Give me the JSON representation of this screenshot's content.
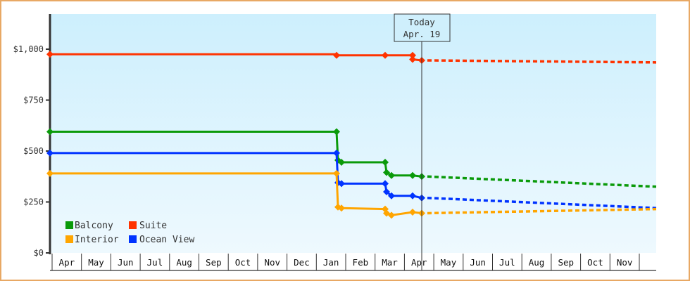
{
  "chart_data": {
    "type": "line",
    "title": "",
    "xlabel": "",
    "ylabel": "",
    "ylim": [
      0,
      1150
    ],
    "y_ticks": [
      {
        "value": 0,
        "label": "$0"
      },
      {
        "value": 250,
        "label": "$250"
      },
      {
        "value": 500,
        "label": "$500"
      },
      {
        "value": 750,
        "label": "$750"
      },
      {
        "value": 1000,
        "label": "$1,000"
      }
    ],
    "x_months": [
      "Apr",
      "May",
      "Jun",
      "Jul",
      "Aug",
      "Sep",
      "Oct",
      "Nov",
      "Dec",
      "Jan",
      "Feb",
      "Mar",
      "Apr",
      "May",
      "Jun",
      "Jul",
      "Aug",
      "Sep",
      "Oct",
      "Nov"
    ],
    "today_marker": {
      "line1": "Today",
      "line2": "Apr. 19"
    },
    "legend": [
      {
        "name": "Balcony",
        "color": "#0a9a0a"
      },
      {
        "name": "Suite",
        "color": "#ff3300"
      },
      {
        "name": "Interior",
        "color": "#ffa500"
      },
      {
        "name": "Ocean View",
        "color": "#0033ff"
      }
    ],
    "series": [
      {
        "name": "Suite",
        "color": "#ff3300",
        "history": [
          [
            "Apr (yr1)",
            975
          ],
          [
            "Jan",
            970
          ],
          [
            "Mar",
            970
          ],
          [
            "Apr",
            950
          ],
          [
            "Apr 19",
            945
          ]
        ],
        "forecast_end": [
          "Nov",
          935
        ]
      },
      {
        "name": "Balcony",
        "color": "#0a9a0a",
        "history": [
          [
            "Apr (yr1)",
            595
          ],
          [
            "Jan",
            455
          ],
          [
            "Jan",
            445
          ],
          [
            "Mar",
            445
          ],
          [
            "Mar",
            395
          ],
          [
            "Mar",
            380
          ],
          [
            "Apr",
            380
          ],
          [
            "Apr 19",
            375
          ]
        ],
        "forecast_end": [
          "Nov",
          325
        ]
      },
      {
        "name": "Ocean View",
        "color": "#0033ff",
        "history": [
          [
            "Apr (yr1)",
            490
          ],
          [
            "Jan",
            345
          ],
          [
            "Jan",
            340
          ],
          [
            "Mar",
            335
          ],
          [
            "Mar",
            295
          ],
          [
            "Mar",
            280
          ],
          [
            "Apr",
            280
          ],
          [
            "Apr 19",
            270
          ]
        ],
        "forecast_end": [
          "Nov",
          220
        ]
      },
      {
        "name": "Interior",
        "color": "#ffa500",
        "history": [
          [
            "Apr (yr1)",
            390
          ],
          [
            "Jan",
            225
          ],
          [
            "Jan",
            220
          ],
          [
            "Mar",
            215
          ],
          [
            "Mar",
            195
          ],
          [
            "Mar",
            180
          ],
          [
            "Apr",
            200
          ],
          [
            "Apr 19",
            195
          ]
        ],
        "forecast_end": [
          "Nov",
          215
        ]
      }
    ]
  }
}
